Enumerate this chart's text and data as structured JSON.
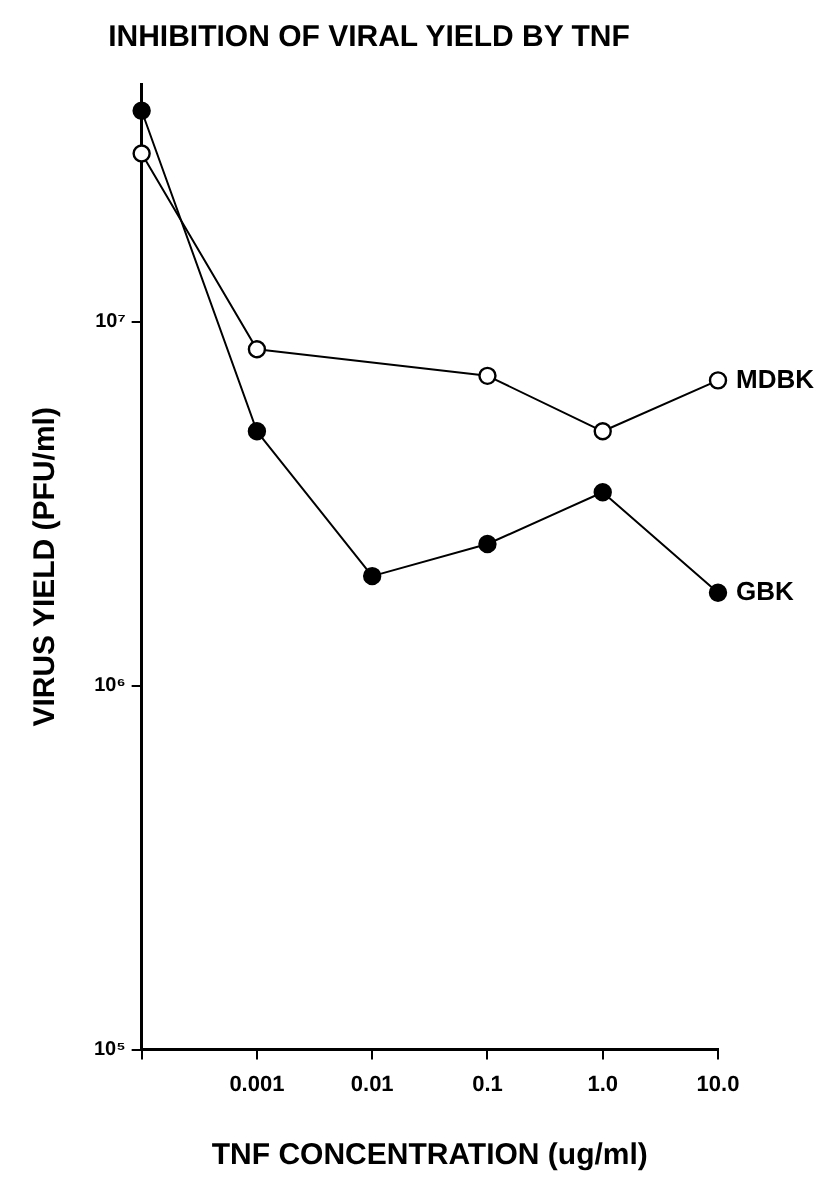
{
  "chart_data": {
    "type": "line",
    "title": "INHIBITION OF VIRAL YIELD BY TNF",
    "xlabel": "TNF CONCENTRATION (ug/ml)",
    "ylabel": "VIRUS YIELD (PFU/ml)",
    "categories": [
      null,
      "0.001",
      "0.01",
      "0.1",
      "1.0",
      "10.0"
    ],
    "series": [
      {
        "name": "MDBK",
        "color": "#000000",
        "values": [
          29000000,
          8400000,
          null,
          7100000,
          5000000,
          6900000
        ]
      },
      {
        "name": "GBK",
        "color": "#000000",
        "values": [
          38000000,
          5000000,
          2000000,
          2450000,
          3400000,
          1800000
        ]
      }
    ],
    "log": "y",
    "ylim": [
      100000,
      45000000
    ],
    "yticks": [
      {
        "value": 100000,
        "label": "10⁵"
      },
      {
        "value": 1000000,
        "label": "10⁶"
      },
      {
        "value": 10000000,
        "label": "10⁷"
      }
    ],
    "grid": false,
    "legend": false,
    "marker": "circle",
    "line_style": "solid"
  }
}
